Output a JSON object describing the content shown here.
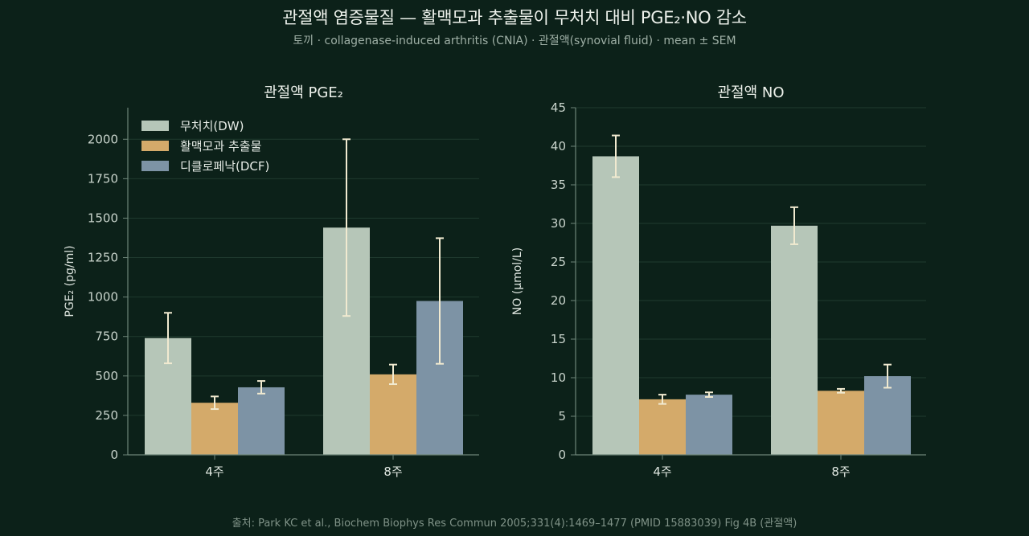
{
  "header": {
    "title": "관절액 염증물질 — 활맥모과 추출물이 무처치 대비 PGE₂·NO 감소",
    "subtitle": "토끼 · collagenase-induced arthritis (CNIA) · 관절액(synovial fluid) · mean ± SEM"
  },
  "footer": {
    "source": "출처: Park KC et al., Biochem Biophys Res Commun 2005;331(4):1469–1477 (PMID 15883039) Fig 4B (관절액)"
  },
  "colors": {
    "series": [
      "#b6c6b8",
      "#d4aa6a",
      "#7d93a5"
    ],
    "errorbar": "#f1ead0",
    "grid": "#1f3a2e",
    "axis": "#6e8579"
  },
  "chart_data": [
    {
      "type": "bar",
      "title": "관절액 PGE₂",
      "ylabel": "PGE₂ (pg/ml)",
      "xlabel": "",
      "categories": [
        "4주",
        "8주"
      ],
      "ylim": [
        0,
        2200
      ],
      "yticks": [
        0,
        250,
        500,
        750,
        1000,
        1250,
        1500,
        1750,
        2000
      ],
      "grid": true,
      "legend": "top-left",
      "series": [
        {
          "name": "무처치(DW)",
          "values": [
            740,
            1440
          ],
          "errors": [
            160,
            560
          ]
        },
        {
          "name": "활맥모과 추출물",
          "values": [
            330,
            510
          ],
          "errors": [
            40,
            62
          ]
        },
        {
          "name": "디클로페낙(DCF)",
          "values": [
            428,
            975
          ],
          "errors": [
            40,
            398
          ]
        }
      ]
    },
    {
      "type": "bar",
      "title": "관절액 NO",
      "ylabel": "NO (μmol/L)",
      "xlabel": "",
      "categories": [
        "4주",
        "8주"
      ],
      "ylim": [
        0,
        45
      ],
      "yticks": [
        0,
        5,
        10,
        15,
        20,
        25,
        30,
        35,
        40,
        45
      ],
      "grid": true,
      "series": [
        {
          "name": "무처치(DW)",
          "values": [
            38.7,
            29.7
          ],
          "errors": [
            2.7,
            2.4
          ]
        },
        {
          "name": "활맥모과 추출물",
          "values": [
            7.2,
            8.3
          ],
          "errors": [
            0.6,
            0.25
          ]
        },
        {
          "name": "디클로페낙(DCF)",
          "values": [
            7.8,
            10.2
          ],
          "errors": [
            0.3,
            1.5
          ]
        }
      ]
    }
  ]
}
